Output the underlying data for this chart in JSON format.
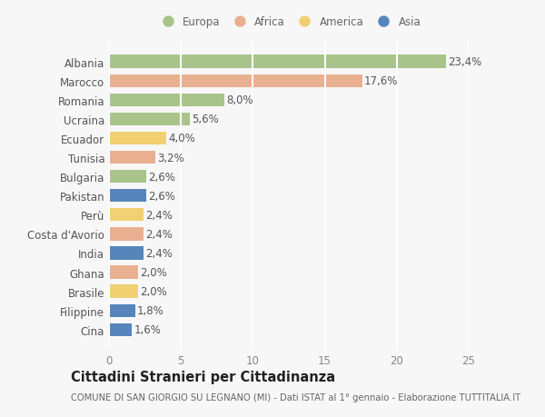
{
  "countries": [
    "Albania",
    "Marocco",
    "Romania",
    "Ucraina",
    "Ecuador",
    "Tunisia",
    "Bulgaria",
    "Pakistan",
    "Perù",
    "Costa d'Avorio",
    "India",
    "Ghana",
    "Brasile",
    "Filippine",
    "Cina"
  ],
  "values": [
    23.4,
    17.6,
    8.0,
    5.6,
    4.0,
    3.2,
    2.6,
    2.6,
    2.4,
    2.4,
    2.4,
    2.0,
    2.0,
    1.8,
    1.6
  ],
  "labels": [
    "23,4%",
    "17,6%",
    "8,0%",
    "5,6%",
    "4,0%",
    "3,2%",
    "2,6%",
    "2,6%",
    "2,4%",
    "2,4%",
    "2,4%",
    "2,0%",
    "2,0%",
    "1,8%",
    "1,6%"
  ],
  "continent": [
    "Europa",
    "Africa",
    "Europa",
    "Europa",
    "America",
    "Africa",
    "Europa",
    "Asia",
    "America",
    "Africa",
    "Asia",
    "Africa",
    "America",
    "Asia",
    "Asia"
  ],
  "colors": {
    "Europa": "#a8c48a",
    "Africa": "#e8b090",
    "America": "#f0d070",
    "Asia": "#5585bb"
  },
  "legend_order": [
    "Europa",
    "Africa",
    "America",
    "Asia"
  ],
  "xlim": [
    0,
    25
  ],
  "xticks": [
    0,
    5,
    10,
    15,
    20,
    25
  ],
  "title": "Cittadini Stranieri per Cittadinanza",
  "subtitle": "COMUNE DI SAN GIORGIO SU LEGNANO (MI) - Dati ISTAT al 1° gennaio - Elaborazione TUTTITALIA.IT",
  "bg_color": "#f7f7f7",
  "grid_color": "#ffffff",
  "bar_height": 0.68,
  "label_fontsize": 8.5,
  "tick_fontsize": 8.5,
  "title_fontsize": 10.5,
  "subtitle_fontsize": 7.2
}
